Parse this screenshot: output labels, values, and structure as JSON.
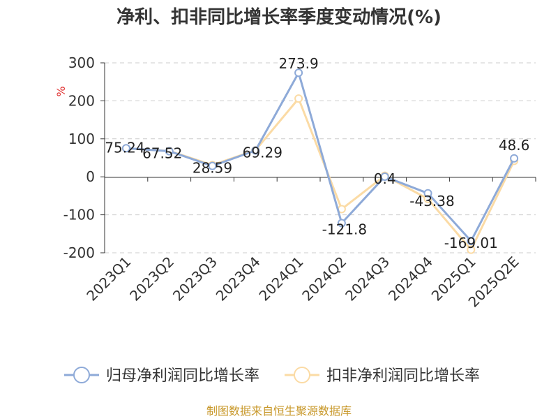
{
  "chart_data": {
    "type": "line",
    "title": "净利、扣非同比增长率季度变动情况(%)",
    "ylabel": "%",
    "categories": [
      "2023Q1",
      "2023Q2",
      "2023Q3",
      "2023Q4",
      "2024Q1",
      "2024Q2",
      "2024Q3",
      "2024Q4",
      "2025Q1",
      "2025Q2E"
    ],
    "ylim": [
      -200,
      300
    ],
    "yticks": [
      300,
      200,
      100,
      0,
      -100,
      -200
    ],
    "grid": true,
    "legend_position": "bottom",
    "series": [
      {
        "name": "归母净利润同比增长率",
        "color": "#8eaad8",
        "values": [
          75.24,
          67.52,
          28.59,
          69.29,
          273.9,
          -121.8,
          0.4,
          -43.38,
          -169.01,
          48.6
        ],
        "labels": [
          "75.24",
          "67.52",
          "28.59",
          "69.29",
          "273.9",
          "-121.8",
          "0.4",
          "-43.38",
          "-169.01",
          "48.6"
        ]
      },
      {
        "name": "扣非净利润同比增长率",
        "color": "#fbdba5",
        "values": [
          75,
          68,
          31,
          70,
          206,
          -85,
          3,
          -58,
          -192,
          42
        ]
      }
    ]
  },
  "footer": {
    "source": "制图数据来自恒生聚源数据库"
  }
}
